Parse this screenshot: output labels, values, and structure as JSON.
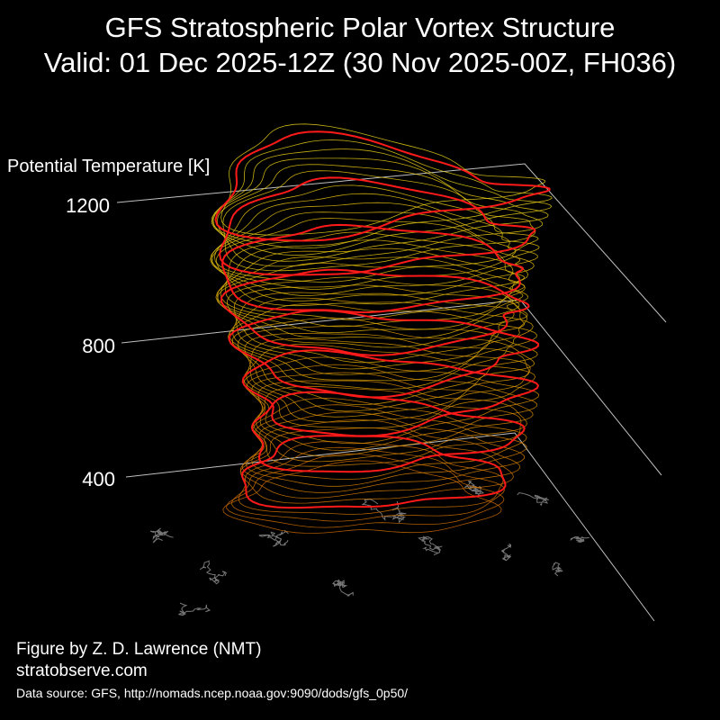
{
  "title": {
    "line1": "GFS Stratospheric Polar Vortex Structure",
    "line2": "Valid: 01 Dec 2025-12Z  (30 Nov 2025-00Z, FH036)"
  },
  "chart_data": {
    "type": "3d-isosurface",
    "zlabel": "Potential Temperature [K]",
    "zticks": [
      400,
      800,
      1200
    ],
    "zlim": [
      300,
      1400
    ],
    "grid": true,
    "colors": {
      "background": "#000000",
      "grid": "#bfbfbf",
      "coastline": "#777777",
      "low_levels": "#cc6a00",
      "mid_levels": "#d9a300",
      "high_levels": "#e6d21a",
      "highlight_contours": "#ff1a1a"
    }
  },
  "credits": {
    "author": "Figure by Z. D. Lawrence (NMT)",
    "site": "stratobserve.com",
    "source": "Data source: GFS, http://nomads.ncep.noaa.gov:9090/dods/gfs_0p50/"
  }
}
